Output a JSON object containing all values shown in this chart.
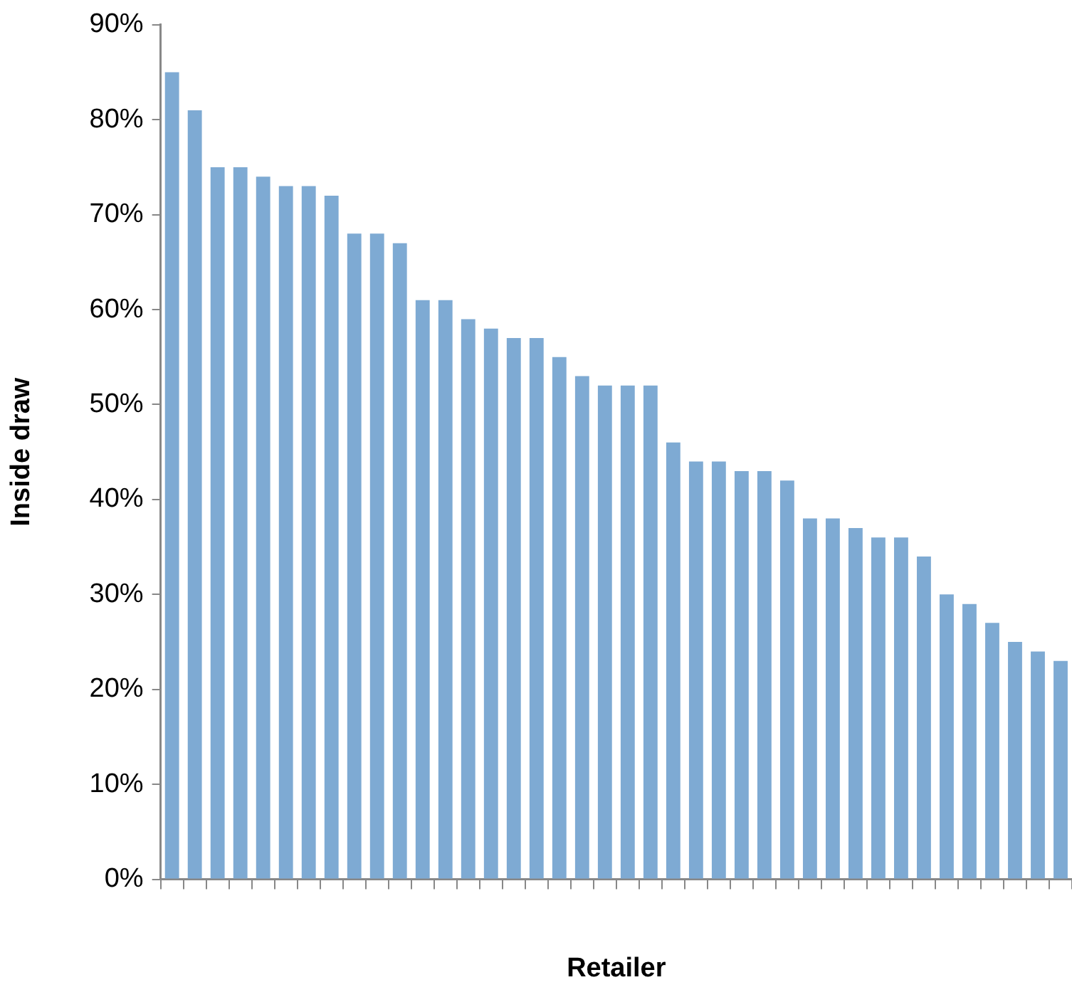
{
  "chart_data": {
    "type": "bar",
    "xlabel": "Retailer",
    "ylabel": "Inside draw",
    "categories": [
      null,
      null,
      null,
      null,
      null,
      null,
      null,
      null,
      null,
      null,
      null,
      null,
      null,
      null,
      null,
      null,
      null,
      null,
      null,
      null,
      null,
      null,
      null,
      null,
      null,
      null,
      null,
      null,
      null,
      null,
      null,
      null,
      null,
      null,
      null,
      null,
      null,
      null,
      null,
      null
    ],
    "values": [
      85,
      81,
      75,
      75,
      74,
      73,
      73,
      72,
      68,
      68,
      67,
      61,
      61,
      59,
      58,
      57,
      57,
      55,
      53,
      52,
      52,
      52,
      46,
      44,
      44,
      43,
      43,
      42,
      38,
      38,
      37,
      36,
      36,
      34,
      30,
      29,
      27,
      25,
      24,
      23
    ],
    "color": "#7eaad3",
    "ylim": [
      0,
      90
    ],
    "yticks": [
      {
        "value": 0,
        "label": "0%"
      },
      {
        "value": 10,
        "label": "10%"
      },
      {
        "value": 20,
        "label": "20%"
      },
      {
        "value": 30,
        "label": "30%"
      },
      {
        "value": 40,
        "label": "40%"
      },
      {
        "value": 50,
        "label": "50%"
      },
      {
        "value": 60,
        "label": "60%"
      },
      {
        "value": 70,
        "label": "70%"
      },
      {
        "value": 80,
        "label": "80%"
      },
      {
        "value": 90,
        "label": "90%"
      }
    ],
    "grid": false,
    "legend": false
  }
}
